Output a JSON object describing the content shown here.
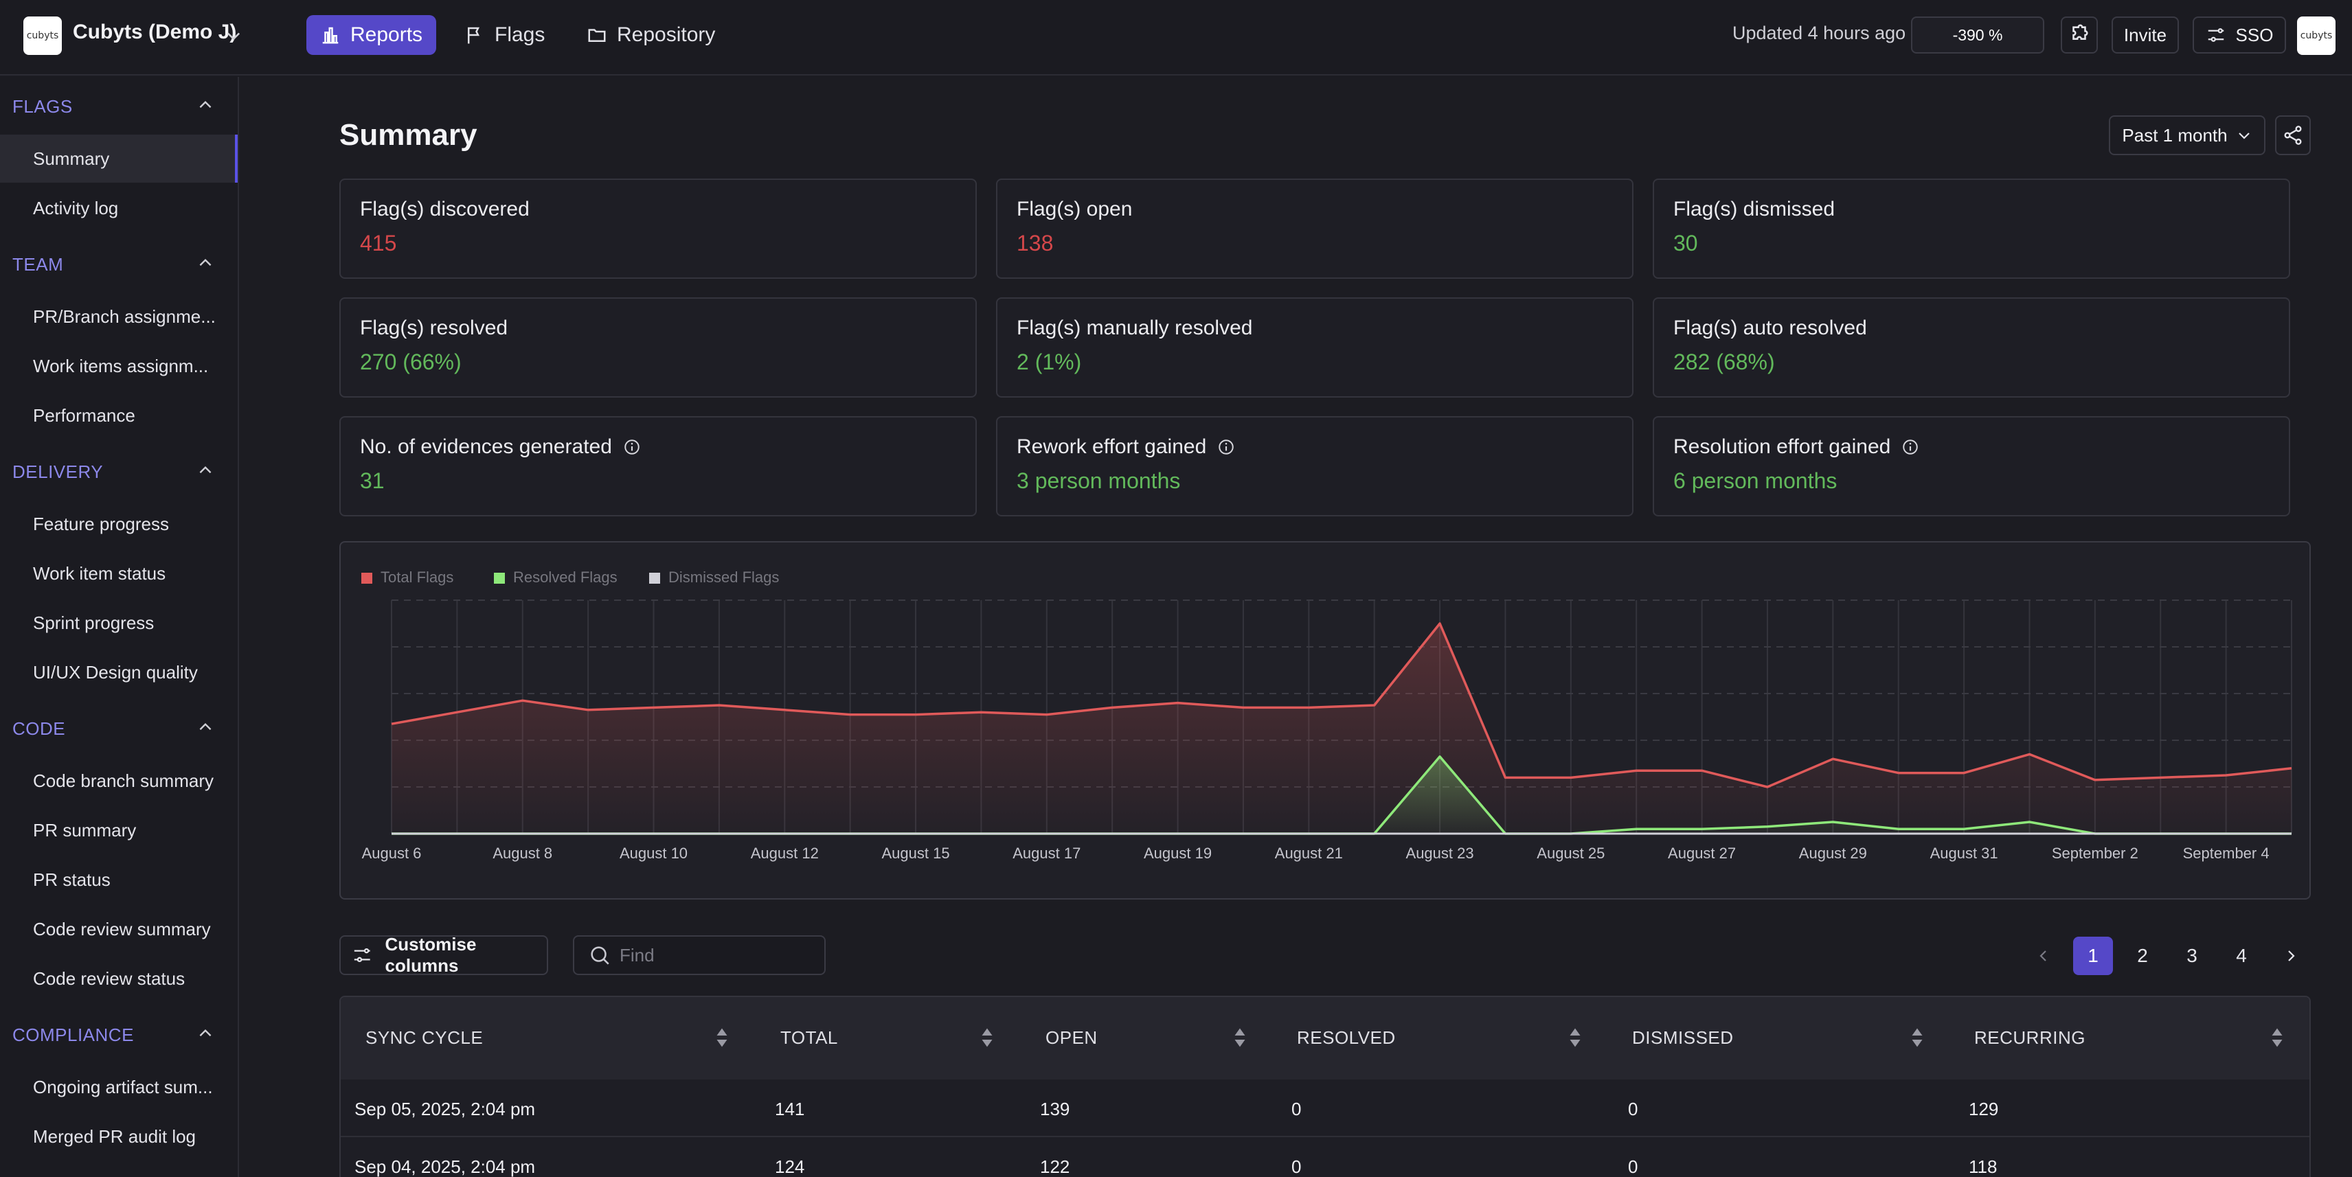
{
  "header": {
    "org_logo_text": "cubyts",
    "org_name": "Cubyts (Demo J)",
    "nav": [
      {
        "label": "Reports",
        "icon": "bar-chart-icon",
        "active": true
      },
      {
        "label": "Flags",
        "icon": "flag-icon",
        "active": false
      },
      {
        "label": "Repository",
        "icon": "folder-icon",
        "active": false
      }
    ],
    "updated": "Updated 4 hours ago",
    "percent": "-390 %",
    "invite": "Invite",
    "sso": "SSO",
    "user_logo_text": "cubyts"
  },
  "sidebar": {
    "sections": [
      {
        "title": "FLAGS",
        "items": [
          "Summary",
          "Activity log"
        ]
      },
      {
        "title": "TEAM",
        "items": [
          "PR/Branch assignme...",
          "Work items assignm...",
          "Performance"
        ]
      },
      {
        "title": "DELIVERY",
        "items": [
          "Feature progress",
          "Work item status",
          "Sprint progress",
          "UI/UX Design quality"
        ]
      },
      {
        "title": "CODE",
        "items": [
          "Code branch summary",
          "PR summary",
          "PR status",
          "Code review summary",
          "Code review status"
        ]
      },
      {
        "title": "COMPLIANCE",
        "items": [
          "Ongoing artifact sum...",
          "Merged PR audit log"
        ]
      }
    ],
    "active_item": "Summary"
  },
  "main": {
    "title": "Summary",
    "range": "Past 1 month",
    "cards": [
      {
        "label": "Flag(s) discovered",
        "value": "415",
        "tone": "red",
        "info": false
      },
      {
        "label": "Flag(s) open",
        "value": "138",
        "tone": "red",
        "info": false
      },
      {
        "label": "Flag(s) dismissed",
        "value": "30",
        "tone": "green",
        "info": false
      },
      {
        "label": "Flag(s) resolved",
        "value": "270 (66%)",
        "tone": "green",
        "info": false
      },
      {
        "label": "Flag(s) manually resolved",
        "value": "2 (1%)",
        "tone": "green",
        "info": false
      },
      {
        "label": "Flag(s) auto resolved",
        "value": "282 (68%)",
        "tone": "green",
        "info": false
      },
      {
        "label": "No. of evidences generated",
        "value": "31",
        "tone": "green",
        "info": true
      },
      {
        "label": "Rework effort gained",
        "value": "3 person months",
        "tone": "green",
        "info": true
      },
      {
        "label": "Resolution effort gained",
        "value": "6 person months",
        "tone": "green",
        "info": true
      }
    ]
  },
  "chart_data": {
    "type": "area",
    "legend_position": "top-left",
    "legend": [
      "Total Flags",
      "Resolved Flags",
      "Dismissed Flags"
    ],
    "colors": {
      "Total Flags": "#e05a5a",
      "Resolved Flags": "#8ee87a",
      "Dismissed Flags": "#d0d0d8"
    },
    "x_tick_labels": [
      "August 6",
      "August 8",
      "August 10",
      "August 12",
      "August 15",
      "August 17",
      "August 19",
      "August 21",
      "August 23",
      "August 25",
      "August 27",
      "August 29",
      "August 31",
      "September 2",
      "September 4"
    ],
    "grid": true,
    "ylim": [
      0,
      100
    ],
    "series": [
      {
        "name": "Total Flags",
        "values": [
          47,
          52,
          57,
          53,
          54,
          55,
          53,
          51,
          51,
          52,
          51,
          54,
          56,
          54,
          54,
          55,
          90,
          24,
          24,
          27,
          27,
          20,
          32,
          26,
          26,
          34,
          23,
          24,
          25,
          28
        ]
      },
      {
        "name": "Resolved Flags",
        "values": [
          0,
          0,
          0,
          0,
          0,
          0,
          0,
          0,
          0,
          0,
          0,
          0,
          0,
          0,
          0,
          0,
          33,
          0,
          0,
          2,
          2,
          3,
          5,
          2,
          2,
          5,
          0,
          0,
          0,
          0
        ]
      },
      {
        "name": "Dismissed Flags",
        "values": [
          0,
          0,
          0,
          0,
          0,
          0,
          0,
          0,
          0,
          0,
          0,
          0,
          0,
          0,
          0,
          0,
          0,
          0,
          0,
          0,
          0,
          0,
          0,
          0,
          0,
          0,
          0,
          0,
          0,
          0
        ]
      }
    ]
  },
  "table": {
    "customise": "Customise columns",
    "find_placeholder": "Find",
    "pages": [
      "1",
      "2",
      "3",
      "4"
    ],
    "active_page": "1",
    "columns": [
      "SYNC CYCLE",
      "TOTAL",
      "OPEN",
      "RESOLVED",
      "DISMISSED",
      "RECURRING"
    ],
    "rows": [
      [
        "Sep 05, 2025, 2:04 pm",
        "141",
        "139",
        "0",
        "0",
        "129"
      ],
      [
        "Sep 04, 2025, 2:04 pm",
        "124",
        "122",
        "0",
        "0",
        "118"
      ]
    ]
  }
}
